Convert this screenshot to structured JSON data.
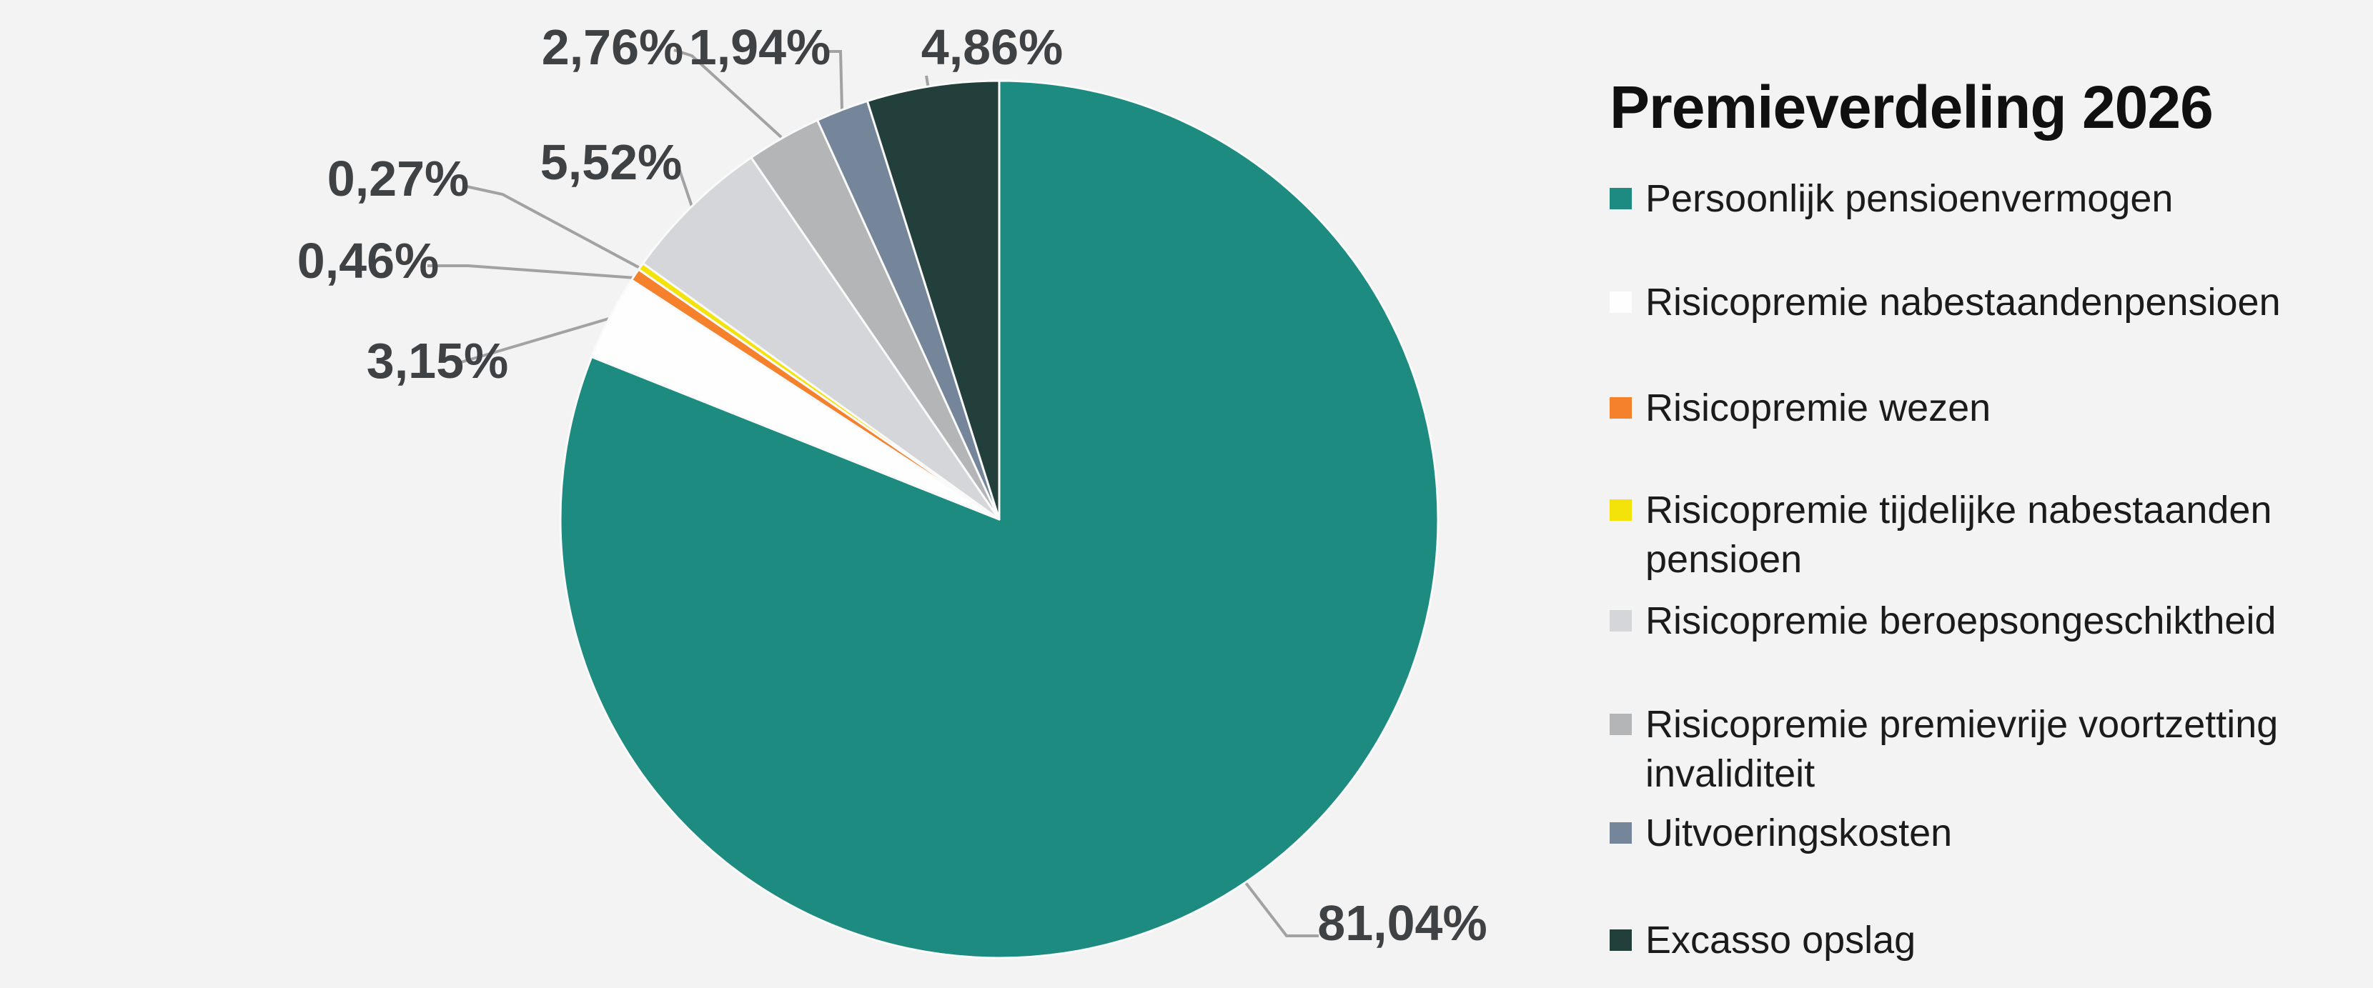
{
  "title": "Premieverdeling 2026",
  "colors": {
    "background": "#F3F3F3",
    "title_text": "#101010",
    "legend_text": "#1B1B1B",
    "percent_label_text": "#3E4245",
    "leader_line": "#A2A2A4",
    "slice_separator": "#FAFAFA"
  },
  "chart_data": {
    "type": "pie",
    "title": "Premieverdeling 2026",
    "start_angle_deg": 0,
    "direction": "clockwise",
    "legend_position": "right",
    "labels_format": "comma-decimal percent",
    "slices": [
      {
        "label": "Persoonlijk pensioenvermogen",
        "value": 81.04,
        "value_label": "81,04%",
        "color": "#1E8B80"
      },
      {
        "label": "Risicopremie nabestaandenpensioen",
        "value": 3.15,
        "value_label": "3,15%",
        "color": "#FEFEFE"
      },
      {
        "label": "Risicopremie wezen",
        "value": 0.46,
        "value_label": "0,46%",
        "color": "#F5812C"
      },
      {
        "label": "Risicopremie tijdelijke nabestaanden pensioen",
        "value": 0.27,
        "value_label": "0,27%",
        "color": "#F3E30A"
      },
      {
        "label": "Risicopremie beroepsongeschiktheid",
        "value": 5.52,
        "value_label": "5,52%",
        "color": "#D5D6DA"
      },
      {
        "label": "Risicopremie premievrije voortzetting invaliditeit",
        "value": 2.76,
        "value_label": "2,76%",
        "color": "#B3B5B7"
      },
      {
        "label": "Uitvoeringskosten",
        "value": 1.94,
        "value_label": "1,94%",
        "color": "#75869A"
      },
      {
        "label": "Excasso opslag",
        "value": 4.86,
        "value_label": "4,86%",
        "color": "#233F3B"
      }
    ]
  },
  "legend": {
    "items": [
      {
        "label": "Persoonlijk pensioenvermogen",
        "color": "#1E8B80"
      },
      {
        "label": "Risicopremie nabestaandenpensioen",
        "color": "#FEFEFE"
      },
      {
        "label": "Risicopremie wezen",
        "color": "#F5812C"
      },
      {
        "label": "Risicopremie tijdelijke nabestaanden\npensioen",
        "color": "#F3E30A"
      },
      {
        "label": "Risicopremie beroepsongeschiktheid",
        "color": "#D5D6DA"
      },
      {
        "label": "Risicopremie premievrije voortzetting\ninvaliditeit",
        "color": "#B3B5B7"
      },
      {
        "label": "Uitvoeringskosten",
        "color": "#75869A"
      },
      {
        "label": "Excasso opslag",
        "color": "#233F3B"
      }
    ]
  }
}
